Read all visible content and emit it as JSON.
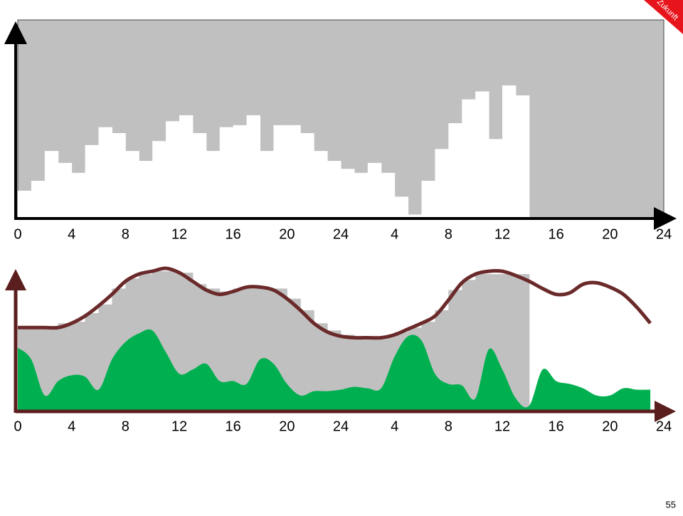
{
  "corner_label": "Zukunft",
  "page_number": "55",
  "chart_data": [
    {
      "type": "histogram",
      "color": "#ffffff",
      "background": "#c0c0c0",
      "xlim": [
        0,
        48
      ],
      "ylim": [
        0,
        100
      ],
      "xticks": [
        0,
        4,
        8,
        12,
        16,
        20,
        24,
        {
          "value": 28,
          "label": "4"
        },
        {
          "value": 32,
          "label": "8"
        },
        {
          "value": 36,
          "label": "12"
        },
        {
          "value": 40,
          "label": "16"
        },
        {
          "value": 44,
          "label": "20"
        },
        {
          "value": 48,
          "label": "24"
        }
      ],
      "bins": [
        0,
        1,
        2,
        3,
        4,
        5,
        6,
        7,
        8,
        9,
        10,
        11,
        12,
        13,
        14,
        15,
        16,
        17,
        18,
        19,
        20,
        21,
        22,
        23,
        24,
        25,
        26,
        27,
        28,
        29,
        30,
        31,
        32,
        33,
        34,
        35,
        36,
        37,
        38
      ],
      "values": [
        14,
        19,
        34,
        28,
        23,
        37,
        46,
        43,
        34,
        29,
        39,
        49,
        52,
        43,
        34,
        46,
        47,
        52,
        34,
        47,
        47,
        43,
        34,
        29,
        25,
        23,
        28,
        23,
        11,
        2,
        19,
        35,
        48,
        60,
        64,
        40,
        67,
        62
      ]
    },
    {
      "type": "combo",
      "xlim": [
        0,
        48
      ],
      "ylim": [
        0,
        100
      ],
      "xticks": [
        0,
        4,
        8,
        12,
        16,
        20,
        24,
        {
          "value": 28,
          "label": "4"
        },
        {
          "value": 32,
          "label": "8"
        },
        {
          "value": 36,
          "label": "12"
        },
        {
          "value": 40,
          "label": "16"
        },
        {
          "value": 44,
          "label": "20"
        },
        {
          "value": 48,
          "label": "24"
        }
      ],
      "series": [
        {
          "type": "histogram",
          "color": "#c0c0c0",
          "bins": [
            0,
            1,
            2,
            3,
            4,
            5,
            6,
            7,
            8,
            9,
            10,
            11,
            12,
            13,
            14,
            15,
            16,
            17,
            18,
            19,
            20,
            21,
            22,
            23,
            24,
            25,
            26,
            27,
            28,
            29,
            30,
            31,
            32,
            33,
            34,
            35,
            36,
            37,
            38
          ],
          "values": [
            58,
            59,
            59,
            61,
            62,
            68,
            74,
            85,
            92,
            95,
            97,
            97,
            96,
            88,
            85,
            83,
            85,
            85,
            85,
            85,
            78,
            70,
            61,
            56,
            53,
            52,
            52,
            52,
            55,
            58,
            62,
            70,
            84,
            91,
            95,
            95,
            95,
            95
          ]
        },
        {
          "type": "area",
          "color": "#00b050",
          "x": [
            0,
            1,
            2,
            3,
            4,
            5,
            6,
            7,
            8,
            9,
            10,
            11,
            12,
            13,
            14,
            15,
            16,
            17,
            18,
            19,
            20,
            21,
            22,
            23,
            24,
            25,
            26,
            27,
            28,
            29,
            30,
            31,
            32,
            33,
            34,
            35,
            36,
            37,
            38,
            39,
            40,
            41,
            42,
            43,
            44,
            45,
            46,
            47
          ],
          "values": [
            44,
            36,
            11,
            21,
            25,
            24,
            15,
            36,
            48,
            54,
            56,
            41,
            26,
            29,
            33,
            21,
            21,
            19,
            36,
            33,
            19,
            11,
            14,
            14,
            15,
            17,
            16,
            16,
            38,
            52,
            49,
            26,
            19,
            18,
            9,
            43,
            29,
            9,
            4,
            29,
            21,
            19,
            16,
            11,
            11,
            16,
            15,
            15
          ]
        },
        {
          "type": "line",
          "color": "#6b2a2a",
          "x": [
            0,
            1,
            2,
            3,
            4,
            5,
            6,
            7,
            8,
            9,
            10,
            11,
            12,
            13,
            14,
            15,
            16,
            17,
            18,
            19,
            20,
            21,
            22,
            23,
            24,
            25,
            26,
            27,
            28,
            29,
            30,
            31,
            32,
            33,
            34,
            35,
            36,
            37,
            38,
            39,
            40,
            41,
            42,
            43,
            44,
            45,
            46,
            47
          ],
          "values": [
            58,
            58,
            58,
            58,
            61,
            66,
            73,
            81,
            90,
            95,
            97,
            99,
            96,
            90,
            84,
            81,
            83,
            86,
            86,
            84,
            78,
            70,
            61,
            55,
            52,
            51,
            51,
            51,
            53,
            57,
            61,
            66,
            77,
            89,
            95,
            97,
            97,
            94,
            90,
            85,
            81,
            82,
            88,
            89,
            86,
            81,
            72,
            61
          ]
        }
      ]
    }
  ]
}
